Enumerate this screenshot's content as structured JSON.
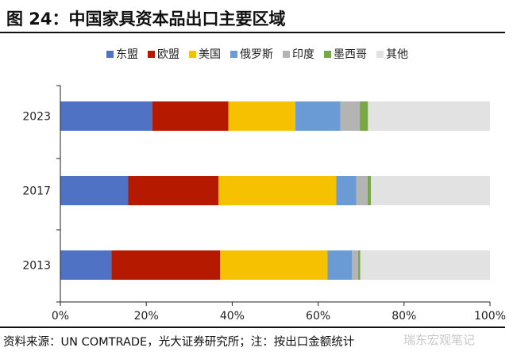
{
  "title": "图 24：中国家具资本品出口主要区域",
  "source": "资料来源：UN COMTRADE，光大证券研究所；注：按出口金额统计",
  "watermark": "瑞东宏观笔记",
  "chart_data": {
    "type": "bar",
    "orientation": "horizontal",
    "stacked": "percent",
    "categories": [
      "2023",
      "2017",
      "2013"
    ],
    "series": [
      {
        "name": "东盟",
        "color": "#4f72c5",
        "values": [
          21.4,
          15.8,
          11.9
        ]
      },
      {
        "name": "欧盟",
        "color": "#b51a00",
        "values": [
          17.7,
          21.0,
          25.3
        ]
      },
      {
        "name": "美国",
        "color": "#f6c200",
        "values": [
          15.6,
          27.4,
          25.0
        ]
      },
      {
        "name": "俄罗斯",
        "color": "#6a9bd5",
        "values": [
          10.5,
          4.7,
          5.7
        ]
      },
      {
        "name": "印度",
        "color": "#b4b4b4",
        "values": [
          4.5,
          2.6,
          1.4
        ]
      },
      {
        "name": "墨西哥",
        "color": "#76a843",
        "values": [
          1.9,
          0.8,
          0.5
        ]
      },
      {
        "name": "其他",
        "color": "#e2e2e2",
        "values": [
          28.4,
          27.7,
          30.2
        ]
      }
    ],
    "xticks": [
      "0%",
      "20%",
      "40%",
      "60%",
      "80%",
      "100%"
    ],
    "xlim": [
      0,
      100
    ],
    "legend": "top"
  }
}
